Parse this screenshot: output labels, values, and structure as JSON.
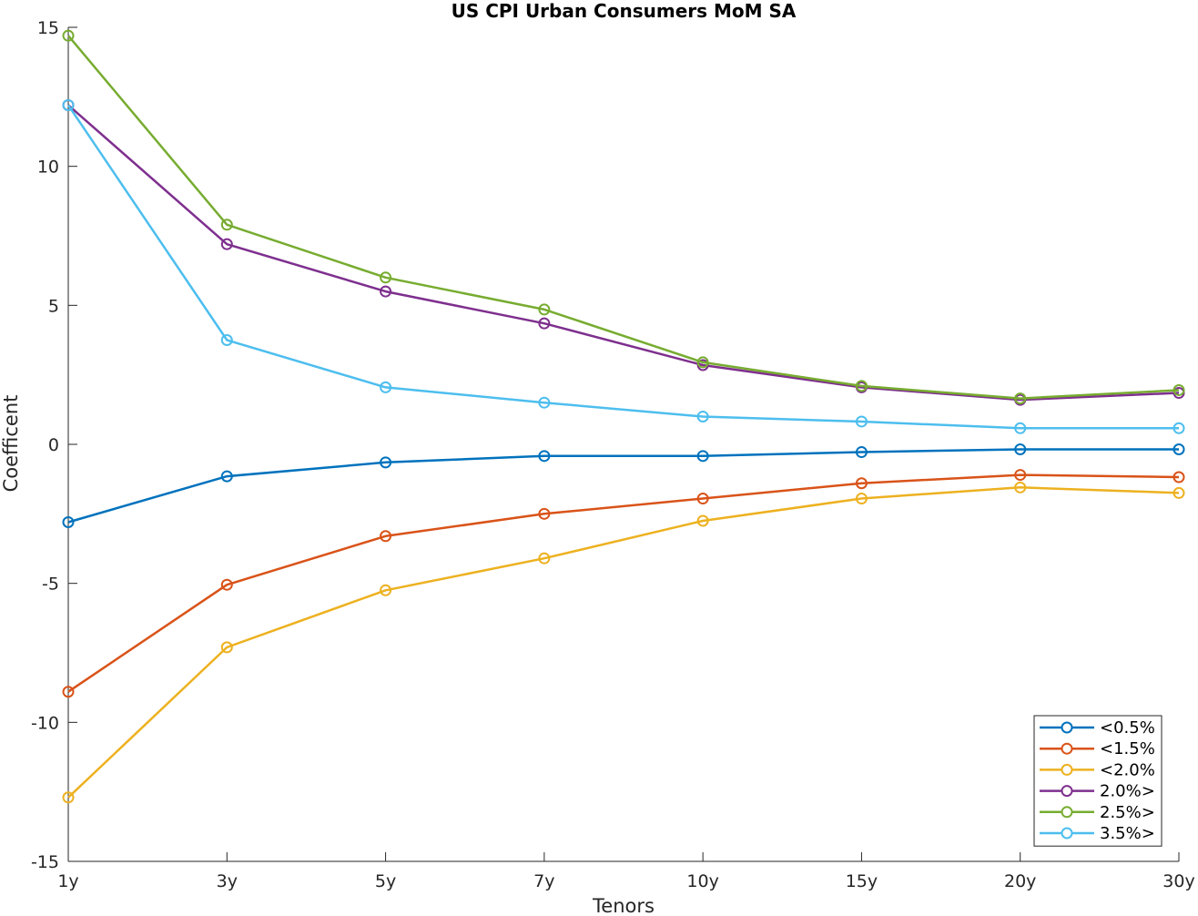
{
  "chart_data": {
    "type": "line",
    "title": "US CPI Urban Consumers MoM SA",
    "xlabel": "Tenors",
    "ylabel": "Coefficent",
    "categories": [
      "1y",
      "3y",
      "5y",
      "7y",
      "10y",
      "15y",
      "20y",
      "30y"
    ],
    "ylim": [
      -15,
      15
    ],
    "yticks": [
      -15,
      -10,
      -5,
      0,
      5,
      10,
      15
    ],
    "ytick_labels": [
      "-15",
      "-10",
      "-5",
      "0",
      "5",
      "10",
      "15"
    ],
    "grid": false,
    "legend_position": "bottom-right",
    "marker": "circle",
    "series": [
      {
        "name": "<0.5%",
        "color": "#0072BD",
        "values": [
          -2.8,
          -1.15,
          -0.65,
          -0.42,
          -0.42,
          -0.28,
          -0.18,
          -0.18
        ]
      },
      {
        "name": "<1.5%",
        "color": "#D95319",
        "values": [
          -8.9,
          -5.05,
          -3.3,
          -2.5,
          -1.95,
          -1.4,
          -1.1,
          -1.18
        ]
      },
      {
        "name": "<2.0%",
        "color": "#EDB120",
        "values": [
          -12.7,
          -7.3,
          -5.25,
          -4.1,
          -2.75,
          -1.95,
          -1.55,
          -1.75
        ]
      },
      {
        "name": "2.0%>",
        "color": "#7E2F8E",
        "values": [
          12.2,
          7.2,
          5.5,
          4.35,
          2.85,
          2.05,
          1.6,
          1.85
        ]
      },
      {
        "name": "2.5%>",
        "color": "#77AC30",
        "values": [
          14.7,
          7.9,
          6.0,
          4.85,
          2.95,
          2.1,
          1.65,
          1.95
        ]
      },
      {
        "name": "3.5%>",
        "color": "#4DBEEE",
        "values": [
          12.2,
          3.75,
          2.05,
          1.5,
          1.0,
          0.82,
          0.58,
          0.58
        ]
      }
    ]
  }
}
